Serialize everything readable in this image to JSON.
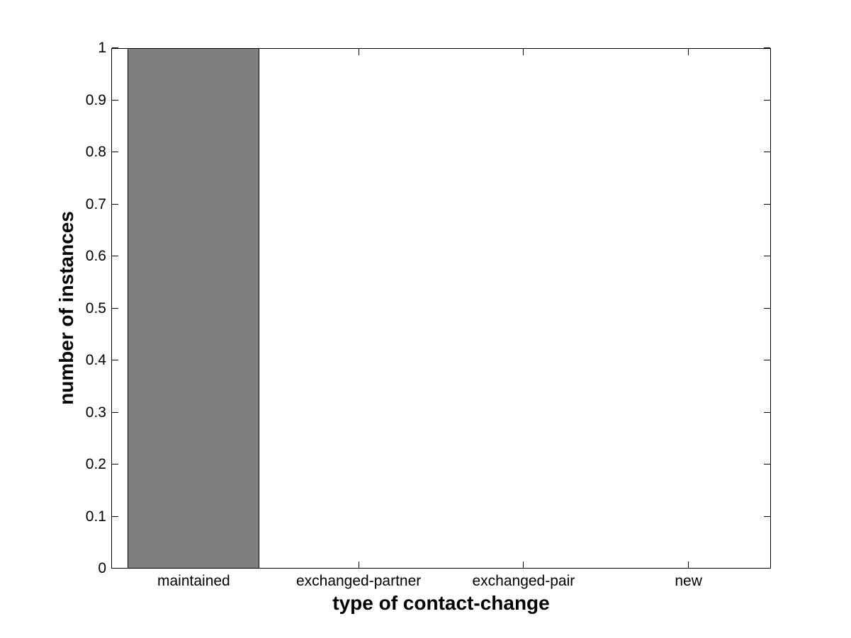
{
  "chart_data": {
    "type": "bar",
    "xlabel": "type of contact-change",
    "ylabel": "number of instances",
    "categories": [
      "maintained",
      "exchanged-partner",
      "exchanged-pair",
      "new"
    ],
    "values": [
      1,
      0,
      0,
      0
    ],
    "ylim": [
      0,
      1
    ],
    "yticks": [
      0,
      0.1,
      0.2,
      0.3,
      0.4,
      0.5,
      0.6,
      0.7,
      0.8,
      0.9,
      1
    ],
    "ytick_labels": [
      "0",
      "0.1",
      "0.2",
      "0.3",
      "0.4",
      "0.5",
      "0.6",
      "0.7",
      "0.8",
      "0.9",
      "1"
    ],
    "bar_width_fraction": 0.8,
    "bar_color": "#7F7F7F",
    "bar_edge_color": "#000000",
    "axis_color": "#000000",
    "background_color": "#FFFFFF",
    "grid": false,
    "legend": null,
    "box": true,
    "tick_direction": "in"
  }
}
